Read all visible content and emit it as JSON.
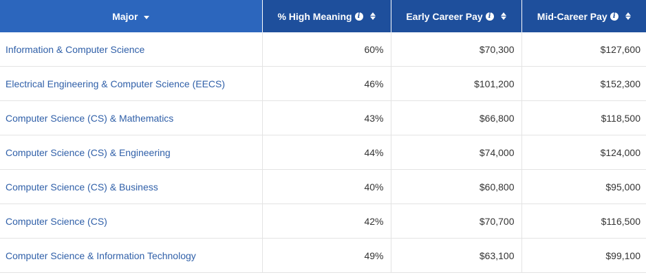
{
  "table": {
    "headers": {
      "major": "Major",
      "pct_high_meaning": "% High Meaning",
      "early_career_pay": "Early Career Pay",
      "mid_career_pay": "Mid-Career Pay"
    },
    "sort": {
      "column": "major",
      "direction": "descending"
    },
    "colors": {
      "header_bg": "#1e4f9c",
      "active_header_bg": "#2c66bd",
      "link": "#2f5fa8"
    },
    "icons": {
      "info": "info-icon",
      "sort": "sort-icon"
    },
    "rows": [
      {
        "major": "Information & Computer Science",
        "pct": "60%",
        "early": "$70,300",
        "mid": "$127,600"
      },
      {
        "major": "Electrical Engineering & Computer Science (EECS)",
        "pct": "46%",
        "early": "$101,200",
        "mid": "$152,300"
      },
      {
        "major": "Computer Science (CS) & Mathematics",
        "pct": "43%",
        "early": "$66,800",
        "mid": "$118,500"
      },
      {
        "major": "Computer Science (CS) & Engineering",
        "pct": "44%",
        "early": "$74,000",
        "mid": "$124,000"
      },
      {
        "major": "Computer Science (CS) & Business",
        "pct": "40%",
        "early": "$60,800",
        "mid": "$95,000"
      },
      {
        "major": "Computer Science (CS)",
        "pct": "42%",
        "early": "$70,700",
        "mid": "$116,500"
      },
      {
        "major": "Computer Science & Information Technology",
        "pct": "49%",
        "early": "$63,100",
        "mid": "$99,100"
      }
    ]
  }
}
